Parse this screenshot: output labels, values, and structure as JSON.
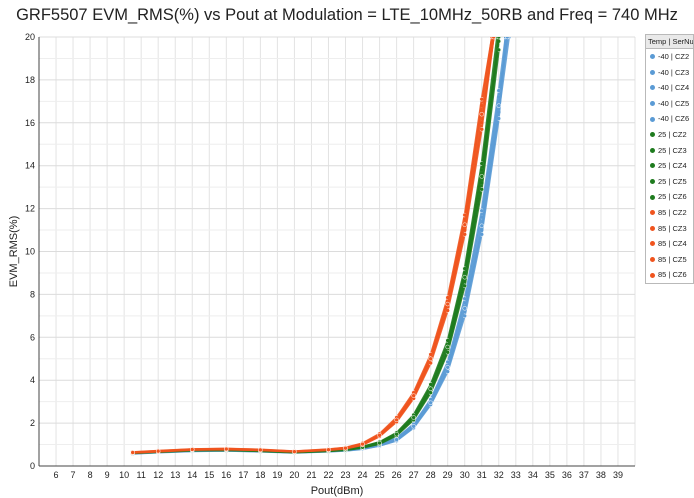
{
  "chart_data": {
    "type": "line",
    "title": "GRF5507 EVM_RMS(%) vs Pout at Modulation = LTE_10MHz_50RB and Freq = 740 MHz",
    "xlabel": "Pout(dBm)",
    "ylabel": "EVM_RMS(%)",
    "xlim": [
      5,
      40
    ],
    "ylim": [
      0,
      20
    ],
    "x_ticks": [
      6,
      7,
      8,
      9,
      10,
      11,
      12,
      13,
      14,
      15,
      16,
      17,
      18,
      19,
      20,
      21,
      22,
      23,
      24,
      25,
      26,
      27,
      28,
      29,
      30,
      31,
      32,
      33,
      34,
      35,
      36,
      37,
      38,
      39
    ],
    "y_ticks": [
      0,
      2,
      4,
      6,
      8,
      10,
      12,
      14,
      16,
      18,
      20
    ],
    "grid": true,
    "legend": {
      "placement": "right",
      "header": "Temp | SerNum"
    },
    "series": [
      {
        "name": "-40 | CZ2",
        "color": "#5b9bd5",
        "x": [
          10.5,
          12,
          14,
          16,
          18,
          20,
          22,
          23,
          24,
          25,
          26,
          27,
          28,
          29,
          30,
          31,
          32,
          32.6
        ],
        "y": [
          0.58,
          0.64,
          0.7,
          0.72,
          0.68,
          0.63,
          0.68,
          0.72,
          0.8,
          0.95,
          1.2,
          1.8,
          2.9,
          4.5,
          7.2,
          11,
          16.5,
          20
        ]
      },
      {
        "name": "-40 | CZ3",
        "color": "#5b9bd5",
        "x": [
          10.5,
          12,
          14,
          16,
          18,
          20,
          22,
          23,
          24,
          25,
          26,
          27,
          28,
          29,
          30,
          31,
          32,
          32.5
        ],
        "y": [
          0.6,
          0.66,
          0.73,
          0.75,
          0.7,
          0.64,
          0.7,
          0.74,
          0.83,
          1.0,
          1.28,
          1.92,
          3.05,
          4.75,
          7.6,
          11.6,
          17.2,
          20
        ]
      },
      {
        "name": "-40 | CZ4",
        "color": "#5b9bd5",
        "x": [
          10.5,
          12,
          14,
          16,
          18,
          20,
          22,
          23,
          24,
          25,
          26,
          27,
          28,
          29,
          30,
          31,
          32,
          32.4
        ],
        "y": [
          0.57,
          0.63,
          0.69,
          0.71,
          0.67,
          0.62,
          0.67,
          0.71,
          0.79,
          0.94,
          1.18,
          1.78,
          2.86,
          4.4,
          7.0,
          10.8,
          16.2,
          20
        ]
      },
      {
        "name": "-40 | CZ5",
        "color": "#5b9bd5",
        "x": [
          10.5,
          12,
          14,
          16,
          18,
          20,
          22,
          23,
          24,
          25,
          26,
          27,
          28,
          29,
          30,
          31,
          32,
          32.4
        ],
        "y": [
          0.61,
          0.67,
          0.74,
          0.76,
          0.71,
          0.65,
          0.71,
          0.75,
          0.84,
          1.02,
          1.3,
          1.95,
          3.1,
          4.85,
          7.8,
          11.9,
          17.5,
          20
        ]
      },
      {
        "name": "-40 | CZ6",
        "color": "#5b9bd5",
        "x": [
          10.5,
          12,
          14,
          16,
          18,
          20,
          22,
          23,
          24,
          25,
          26,
          27,
          28,
          29,
          30,
          31,
          32,
          32.5
        ],
        "y": [
          0.59,
          0.65,
          0.71,
          0.73,
          0.69,
          0.63,
          0.69,
          0.73,
          0.81,
          0.97,
          1.23,
          1.85,
          2.95,
          4.6,
          7.35,
          11.2,
          16.8,
          20
        ]
      },
      {
        "name": "25 | CZ2",
        "color": "#1e7b1e",
        "x": [
          10.5,
          12,
          14,
          16,
          18,
          20,
          22,
          23,
          24,
          25,
          26,
          27,
          28,
          29,
          30,
          31,
          32
        ],
        "y": [
          0.6,
          0.66,
          0.73,
          0.74,
          0.7,
          0.64,
          0.7,
          0.75,
          0.86,
          1.05,
          1.45,
          2.2,
          3.5,
          5.4,
          8.6,
          13.2,
          19.8
        ]
      },
      {
        "name": "25 | CZ3",
        "color": "#1e7b1e",
        "x": [
          10.5,
          12,
          14,
          16,
          18,
          20,
          22,
          23,
          24,
          25,
          26,
          27,
          28,
          29,
          30,
          31,
          32
        ],
        "y": [
          0.62,
          0.68,
          0.75,
          0.76,
          0.72,
          0.65,
          0.72,
          0.77,
          0.89,
          1.1,
          1.52,
          2.32,
          3.7,
          5.7,
          9.0,
          13.8,
          20
        ]
      },
      {
        "name": "25 | CZ4",
        "color": "#1e7b1e",
        "x": [
          10.5,
          12,
          14,
          16,
          18,
          20,
          22,
          23,
          24,
          25,
          26,
          27,
          28,
          29,
          30,
          31,
          32
        ],
        "y": [
          0.59,
          0.65,
          0.72,
          0.73,
          0.69,
          0.63,
          0.69,
          0.74,
          0.85,
          1.03,
          1.42,
          2.15,
          3.42,
          5.3,
          8.4,
          12.9,
          19.4
        ]
      },
      {
        "name": "25 | CZ5",
        "color": "#1e7b1e",
        "x": [
          10.5,
          12,
          14,
          16,
          18,
          20,
          22,
          23,
          24,
          25,
          26,
          27,
          28,
          29,
          30,
          31,
          31.9
        ],
        "y": [
          0.63,
          0.69,
          0.76,
          0.77,
          0.73,
          0.66,
          0.73,
          0.78,
          0.9,
          1.12,
          1.55,
          2.38,
          3.8,
          5.85,
          9.2,
          14.1,
          20
        ]
      },
      {
        "name": "25 | CZ6",
        "color": "#1e7b1e",
        "x": [
          10.5,
          12,
          14,
          16,
          18,
          20,
          22,
          23,
          24,
          25,
          26,
          27,
          28,
          29,
          30,
          31,
          32
        ],
        "y": [
          0.61,
          0.67,
          0.74,
          0.75,
          0.71,
          0.64,
          0.71,
          0.76,
          0.87,
          1.07,
          1.48,
          2.26,
          3.6,
          5.55,
          8.8,
          13.5,
          20
        ]
      },
      {
        "name": "85 | CZ2",
        "color": "#f0541e",
        "x": [
          10.5,
          12,
          14,
          16,
          18,
          20,
          22,
          23,
          24,
          25,
          26,
          27,
          28,
          29,
          30,
          31,
          31.7
        ],
        "y": [
          0.62,
          0.68,
          0.76,
          0.78,
          0.74,
          0.67,
          0.75,
          0.82,
          1.0,
          1.4,
          2.1,
          3.2,
          4.9,
          7.4,
          11.0,
          16.0,
          20
        ]
      },
      {
        "name": "85 | CZ3",
        "color": "#f0541e",
        "x": [
          10.5,
          12,
          14,
          16,
          18,
          20,
          22,
          23,
          24,
          25,
          26,
          27,
          28,
          29,
          30,
          31,
          31.6
        ],
        "y": [
          0.64,
          0.7,
          0.78,
          0.8,
          0.76,
          0.68,
          0.77,
          0.85,
          1.04,
          1.46,
          2.2,
          3.35,
          5.1,
          7.7,
          11.5,
          16.8,
          20
        ]
      },
      {
        "name": "85 | CZ4",
        "color": "#f0541e",
        "x": [
          10.5,
          12,
          14,
          16,
          18,
          20,
          22,
          23,
          24,
          25,
          26,
          27,
          28,
          29,
          30,
          31,
          31.7
        ],
        "y": [
          0.61,
          0.67,
          0.75,
          0.77,
          0.73,
          0.66,
          0.74,
          0.81,
          0.98,
          1.38,
          2.06,
          3.15,
          4.8,
          7.25,
          10.8,
          15.7,
          20
        ]
      },
      {
        "name": "85 | CZ5",
        "color": "#f0541e",
        "x": [
          10.5,
          12,
          14,
          16,
          18,
          20,
          22,
          23,
          24,
          25,
          26,
          27,
          28,
          29,
          30,
          31,
          31.6
        ],
        "y": [
          0.65,
          0.71,
          0.79,
          0.81,
          0.77,
          0.69,
          0.78,
          0.86,
          1.06,
          1.5,
          2.26,
          3.42,
          5.2,
          7.85,
          11.7,
          17.1,
          20
        ]
      },
      {
        "name": "85 | CZ6",
        "color": "#f0541e",
        "x": [
          10.5,
          12,
          14,
          16,
          18,
          20,
          22,
          23,
          24,
          25,
          26,
          27,
          28,
          29,
          30,
          31,
          31.7
        ],
        "y": [
          0.63,
          0.69,
          0.77,
          0.79,
          0.75,
          0.67,
          0.76,
          0.83,
          1.02,
          1.43,
          2.15,
          3.28,
          5.0,
          7.55,
          11.25,
          16.4,
          20
        ]
      }
    ]
  }
}
